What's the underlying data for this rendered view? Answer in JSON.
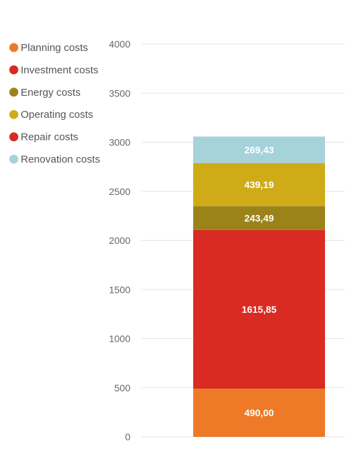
{
  "chart_data": {
    "type": "bar",
    "stacked": true,
    "categories": [
      ""
    ],
    "series": [
      {
        "name": "Planning costs",
        "values": [
          490.0
        ],
        "label": "490,00",
        "color": "#ee7a27"
      },
      {
        "name": "Investment costs",
        "values": [
          1615.85
        ],
        "label": "1615,85",
        "color": "#d92b22"
      },
      {
        "name": "Energy costs",
        "values": [
          243.49
        ],
        "label": "243,49",
        "color": "#9b8319"
      },
      {
        "name": "Operating costs",
        "values": [
          439.19
        ],
        "label": "439,19",
        "color": "#cfab17"
      },
      {
        "name": "Repair costs",
        "values": [
          0
        ],
        "label": "",
        "color": "#d92b22"
      },
      {
        "name": "Renovation costs",
        "values": [
          269.43
        ],
        "label": "269,43",
        "color": "#a6d2d9"
      }
    ],
    "yticks": [
      "0",
      "500",
      "1000",
      "1500",
      "2000",
      "2500",
      "3000",
      "3500",
      "4000"
    ],
    "ylim": [
      0,
      4000
    ],
    "grid": true,
    "legend": "left"
  }
}
